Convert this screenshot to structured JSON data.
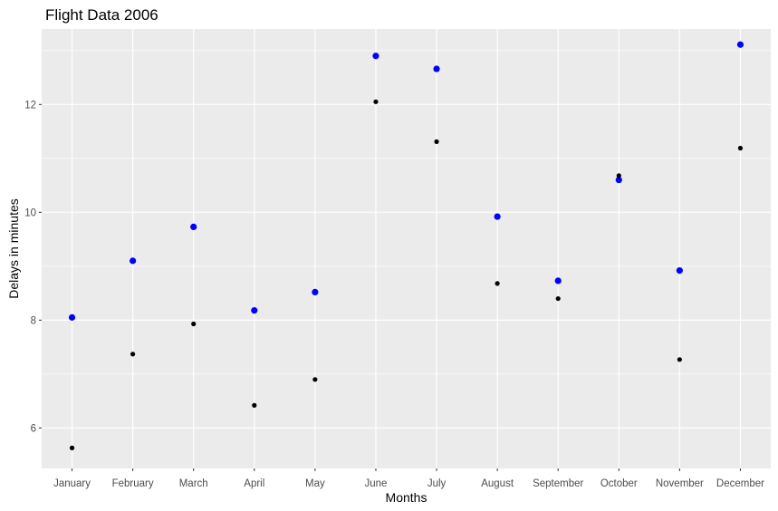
{
  "chart_data": {
    "type": "scatter",
    "title": "Flight Data 2006",
    "xlabel": "Months",
    "ylabel": "Delays in minutes",
    "categories": [
      "January",
      "February",
      "March",
      "April",
      "May",
      "June",
      "July",
      "August",
      "September",
      "October",
      "November",
      "December"
    ],
    "ylim": [
      5.25,
      13.4
    ],
    "yticks": [
      6,
      8,
      10,
      12
    ],
    "grid": true,
    "legend": "none",
    "series": [
      {
        "color": "#0000ff",
        "values": [
          8.05,
          9.1,
          9.73,
          8.18,
          8.52,
          12.9,
          12.66,
          9.92,
          8.73,
          10.6,
          8.92,
          13.11
        ]
      },
      {
        "color": "#000000",
        "values": [
          5.63,
          7.37,
          7.93,
          6.42,
          6.9,
          12.05,
          11.31,
          8.68,
          8.4,
          10.68,
          7.27,
          11.19
        ]
      }
    ],
    "panel_background": "#ebebeb",
    "gridline_color": "#ffffff"
  }
}
